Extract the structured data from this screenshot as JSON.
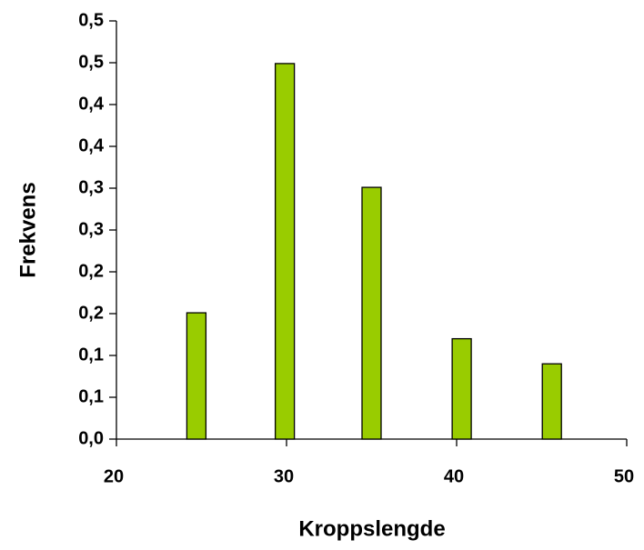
{
  "chart_data": {
    "type": "bar",
    "x_label": "Kroppslengde",
    "y_label": "Frekvens",
    "x": [
      24.7,
      29.9,
      35.0,
      40.3,
      45.6
    ],
    "values": [
      0.151,
      0.449,
      0.301,
      0.12,
      0.09
    ],
    "color": "#99cc00",
    "xlim": [
      20,
      50
    ],
    "xticks": [
      20,
      30,
      40,
      50
    ],
    "ylim": [
      0,
      0.5
    ],
    "yticks": [
      {
        "value": 0,
        "label": "0,0"
      },
      {
        "value": 0.05,
        "label": "0,1"
      },
      {
        "value": 0.1,
        "label": "0,1"
      },
      {
        "value": 0.15,
        "label": "0,2"
      },
      {
        "value": 0.2,
        "label": "0,2"
      },
      {
        "value": 0.25,
        "label": "0,3"
      },
      {
        "value": 0.3,
        "label": "0,3"
      },
      {
        "value": 0.35,
        "label": "0,4"
      },
      {
        "value": 0.4,
        "label": "0,4"
      },
      {
        "value": 0.45,
        "label": "0,5"
      },
      {
        "value": 0.5,
        "label": "0,5"
      }
    ],
    "grid": false
  }
}
